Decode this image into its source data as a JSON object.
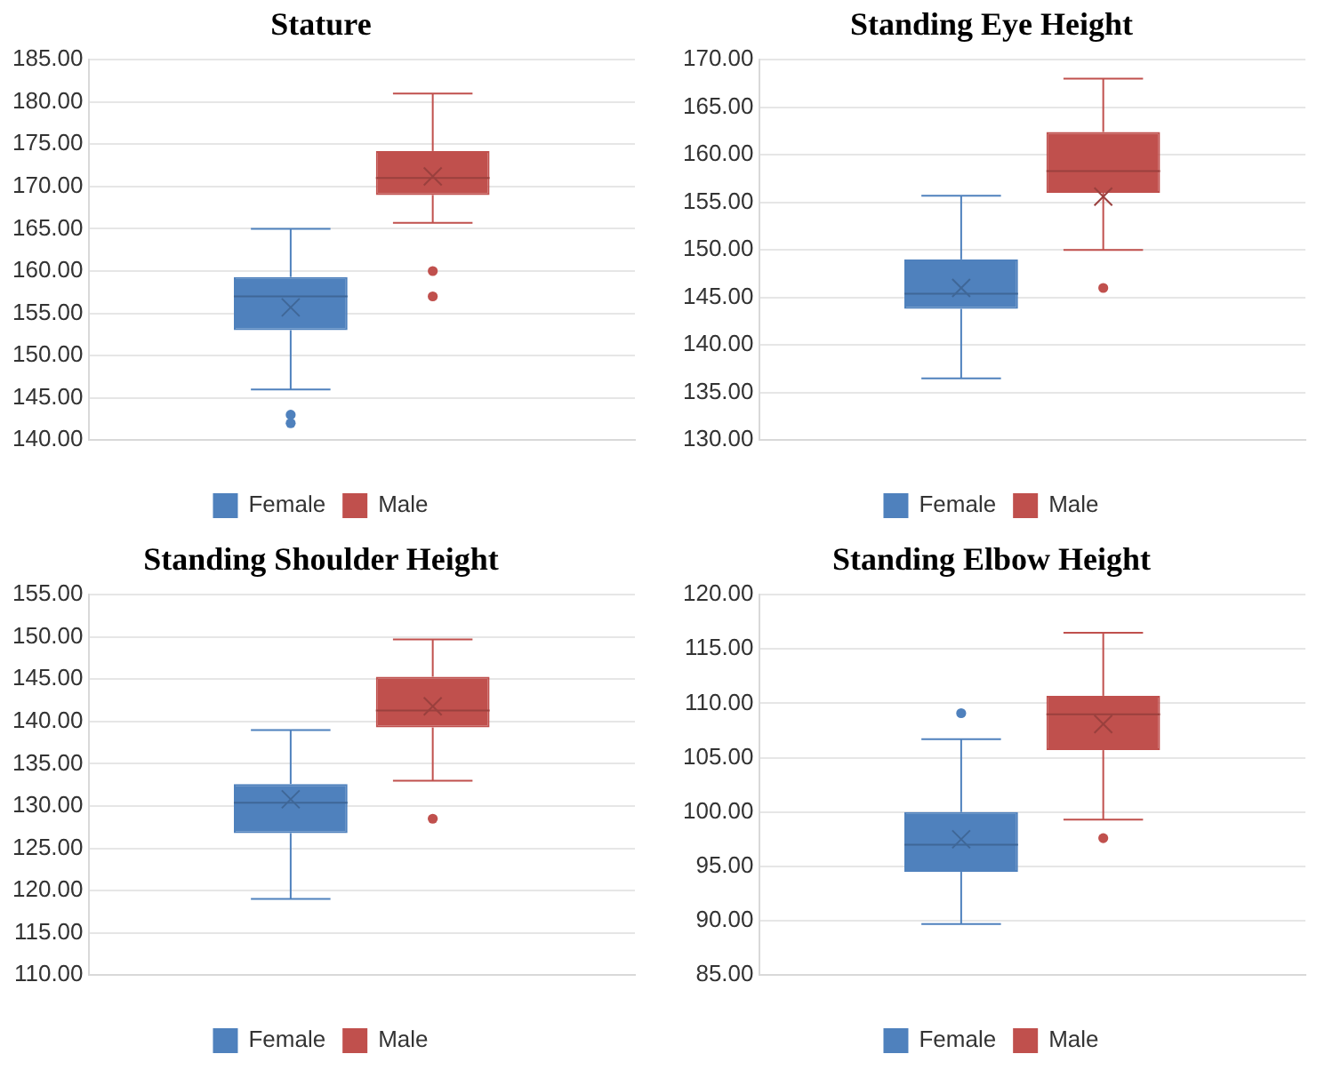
{
  "chart_data": [
    {
      "type": "box",
      "title": "Stature",
      "categories": [
        null
      ],
      "legend": "bottom",
      "grid": "y",
      "ylim": [
        140,
        185
      ],
      "yticks": [
        {
          "value": 140,
          "label": "140.00"
        },
        {
          "value": 145,
          "label": "145.00"
        },
        {
          "value": 150,
          "label": "150.00"
        },
        {
          "value": 155,
          "label": "155.00"
        },
        {
          "value": 160,
          "label": "160.00"
        },
        {
          "value": 165,
          "label": "165.00"
        },
        {
          "value": 170,
          "label": "170.00"
        },
        {
          "value": 175,
          "label": "175.00"
        },
        {
          "value": 180,
          "label": "180.00"
        },
        {
          "value": 185,
          "label": "185.00"
        }
      ],
      "series": [
        {
          "name": "Female",
          "color": "#4f81bd",
          "boxes": [
            {
              "low": 146,
              "q1": 153,
              "median": 157,
              "q3": 159.3,
              "high": 165,
              "mean": 155.7,
              "outliers": [
                142,
                143
              ]
            }
          ]
        },
        {
          "name": "Male",
          "color": "#c0504d",
          "boxes": [
            {
              "low": 165.7,
              "q1": 169,
              "median": 171,
              "q3": 174.2,
              "high": 181,
              "mean": 171.2,
              "outliers": [
                157,
                160
              ]
            }
          ]
        }
      ]
    },
    {
      "type": "box",
      "title": "Standing Eye Height",
      "categories": [
        null
      ],
      "legend": "bottom",
      "grid": "y",
      "ylim": [
        130,
        170
      ],
      "yticks": [
        {
          "value": 130,
          "label": "130.00"
        },
        {
          "value": 135,
          "label": "135.00"
        },
        {
          "value": 140,
          "label": "140.00"
        },
        {
          "value": 145,
          "label": "145.00"
        },
        {
          "value": 150,
          "label": "150.00"
        },
        {
          "value": 155,
          "label": "155.00"
        },
        {
          "value": 160,
          "label": "160.00"
        },
        {
          "value": 165,
          "label": "165.00"
        },
        {
          "value": 170,
          "label": "170.00"
        }
      ],
      "series": [
        {
          "name": "Female",
          "color": "#4f81bd",
          "boxes": [
            {
              "low": 136.5,
              "q1": 143.8,
              "median": 145.4,
              "q3": 149,
              "high": 155.7,
              "mean": 146
            }
          ]
        },
        {
          "name": "Male",
          "color": "#c0504d",
          "boxes": [
            {
              "low": 150,
              "q1": 156,
              "median": 158.3,
              "q3": 162.4,
              "high": 168,
              "mean": 155.6,
              "outliers": [
                146
              ]
            }
          ]
        }
      ]
    },
    {
      "type": "box",
      "title": "Standing Shoulder Height",
      "categories": [
        null
      ],
      "legend": "bottom",
      "grid": "y",
      "ylim": [
        110,
        155
      ],
      "yticks": [
        {
          "value": 110,
          "label": "110.00"
        },
        {
          "value": 115,
          "label": "115.00"
        },
        {
          "value": 120,
          "label": "120.00"
        },
        {
          "value": 125,
          "label": "125.00"
        },
        {
          "value": 130,
          "label": "130.00"
        },
        {
          "value": 135,
          "label": "135.00"
        },
        {
          "value": 140,
          "label": "140.00"
        },
        {
          "value": 145,
          "label": "145.00"
        },
        {
          "value": 150,
          "label": "150.00"
        },
        {
          "value": 155,
          "label": "155.00"
        }
      ],
      "series": [
        {
          "name": "Female",
          "color": "#4f81bd",
          "boxes": [
            {
              "low": 119,
              "q1": 126.8,
              "median": 130.4,
              "q3": 132.6,
              "high": 139,
              "mean": 130.8
            }
          ]
        },
        {
          "name": "Male",
          "color": "#c0504d",
          "boxes": [
            {
              "low": 133,
              "q1": 139.3,
              "median": 141.3,
              "q3": 145.3,
              "high": 149.7,
              "mean": 141.8,
              "outliers": [
                128.5
              ]
            }
          ]
        }
      ]
    },
    {
      "type": "box",
      "title": "Standing Elbow Height",
      "categories": [
        null
      ],
      "legend": "bottom",
      "grid": "y",
      "ylim": [
        85,
        120
      ],
      "yticks": [
        {
          "value": 85,
          "label": "85.00"
        },
        {
          "value": 90,
          "label": "90.00"
        },
        {
          "value": 95,
          "label": "95.00"
        },
        {
          "value": 100,
          "label": "100.00"
        },
        {
          "value": 105,
          "label": "105.00"
        },
        {
          "value": 110,
          "label": "110.00"
        },
        {
          "value": 115,
          "label": "115.00"
        },
        {
          "value": 120,
          "label": "120.00"
        }
      ],
      "series": [
        {
          "name": "Female",
          "color": "#4f81bd",
          "boxes": [
            {
              "low": 89.7,
              "q1": 94.5,
              "median": 97,
              "q3": 100,
              "high": 106.7,
              "mean": 97.5,
              "outliers": [
                109.1
              ]
            }
          ]
        },
        {
          "name": "Male",
          "color": "#c0504d",
          "boxes": [
            {
              "low": 99.3,
              "q1": 105.7,
              "median": 109,
              "q3": 110.7,
              "high": 116.5,
              "mean": 108.1,
              "outliers": [
                97.6
              ]
            }
          ]
        }
      ]
    }
  ]
}
